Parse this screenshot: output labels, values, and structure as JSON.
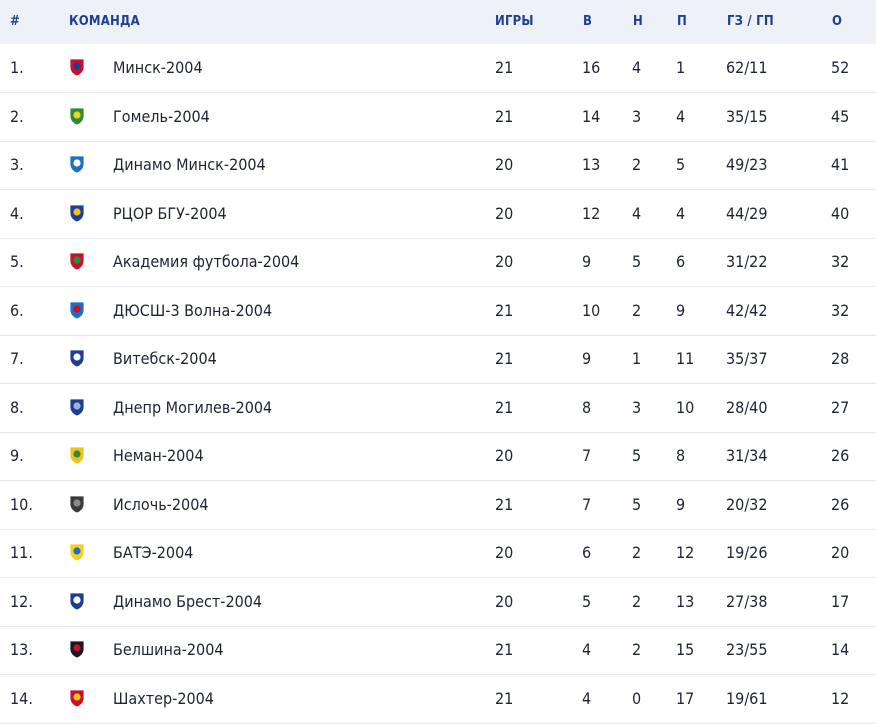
{
  "header": {
    "num": "#",
    "team": "КОМАНДА",
    "games": "ИГРЫ",
    "wins": "В",
    "draws": "Н",
    "losses": "П",
    "goals": "ГЗ / ГП",
    "points": "О"
  },
  "rows": [
    {
      "num": "1.",
      "team": "Минск-2004",
      "games": "21",
      "wins": "16",
      "draws": "4",
      "losses": "1",
      "goals": "62/11",
      "points": "52",
      "logo": "minsk-crest",
      "c1": "#c8102e",
      "c2": "#1c3f94"
    },
    {
      "num": "2.",
      "team": "Гомель-2004",
      "games": "21",
      "wins": "14",
      "draws": "3",
      "losses": "4",
      "goals": "35/15",
      "points": "45",
      "logo": "gomel-crest",
      "c1": "#2e8b3a",
      "c2": "#f2d21b"
    },
    {
      "num": "3.",
      "team": "Динамо Минск-2004",
      "games": "20",
      "wins": "13",
      "draws": "2",
      "losses": "5",
      "goals": "49/23",
      "points": "41",
      "logo": "dinamo-minsk-crest",
      "c1": "#1d6fc4",
      "c2": "#ffffff"
    },
    {
      "num": "4.",
      "team": "РЦОР БГУ-2004",
      "games": "20",
      "wins": "12",
      "draws": "4",
      "losses": "4",
      "goals": "44/29",
      "points": "40",
      "logo": "rcor-bgu-crest",
      "c1": "#1c3f94",
      "c2": "#f2c21b"
    },
    {
      "num": "5.",
      "team": "Академия футбола-2004",
      "games": "20",
      "wins": "9",
      "draws": "5",
      "losses": "6",
      "goals": "31/22",
      "points": "32",
      "logo": "academy-crest",
      "c1": "#c8102e",
      "c2": "#2e8b3a"
    },
    {
      "num": "6.",
      "team": "ДЮСШ-3 Волна-2004",
      "games": "21",
      "wins": "10",
      "draws": "2",
      "losses": "9",
      "goals": "42/42",
      "points": "32",
      "logo": "volna-crest",
      "c1": "#1d6fc4",
      "c2": "#c8102e"
    },
    {
      "num": "7.",
      "team": "Витебск-2004",
      "games": "21",
      "wins": "9",
      "draws": "1",
      "losses": "11",
      "goals": "35/37",
      "points": "28",
      "logo": "vitebsk-crest",
      "c1": "#1c3f94",
      "c2": "#ffffff"
    },
    {
      "num": "8.",
      "team": "Днепр Могилев-2004",
      "games": "21",
      "wins": "8",
      "draws": "3",
      "losses": "10",
      "goals": "28/40",
      "points": "27",
      "logo": "dnepr-crest",
      "c1": "#1c3f94",
      "c2": "#9fb2d9"
    },
    {
      "num": "9.",
      "team": "Неман-2004",
      "games": "20",
      "wins": "7",
      "draws": "5",
      "losses": "8",
      "goals": "31/34",
      "points": "26",
      "logo": "neman-crest",
      "c1": "#f2c21b",
      "c2": "#2e8b3a"
    },
    {
      "num": "10.",
      "team": "Ислочь-2004",
      "games": "21",
      "wins": "7",
      "draws": "5",
      "losses": "9",
      "goals": "20/32",
      "points": "26",
      "logo": "isloch-crest",
      "c1": "#3a3a3a",
      "c2": "#8a8a8a"
    },
    {
      "num": "11.",
      "team": "БАТЭ-2004",
      "games": "20",
      "wins": "6",
      "draws": "2",
      "losses": "12",
      "goals": "19/26",
      "points": "20",
      "logo": "bate-crest",
      "c1": "#f2d21b",
      "c2": "#1d6fc4"
    },
    {
      "num": "12.",
      "team": "Динамо Брест-2004",
      "games": "20",
      "wins": "5",
      "draws": "2",
      "losses": "13",
      "goals": "27/38",
      "points": "17",
      "logo": "dinamo-brest-crest",
      "c1": "#1c3f94",
      "c2": "#ffffff"
    },
    {
      "num": "13.",
      "team": "Белшина-2004",
      "games": "21",
      "wins": "4",
      "draws": "2",
      "losses": "15",
      "goals": "23/55",
      "points": "14",
      "logo": "belshina-crest",
      "c1": "#1a1a1a",
      "c2": "#c8102e"
    },
    {
      "num": "14.",
      "team": "Шахтер-2004",
      "games": "21",
      "wins": "4",
      "draws": "0",
      "losses": "17",
      "goals": "19/61",
      "points": "12",
      "logo": "shakhter-crest",
      "c1": "#c8102e",
      "c2": "#f2c21b"
    }
  ]
}
